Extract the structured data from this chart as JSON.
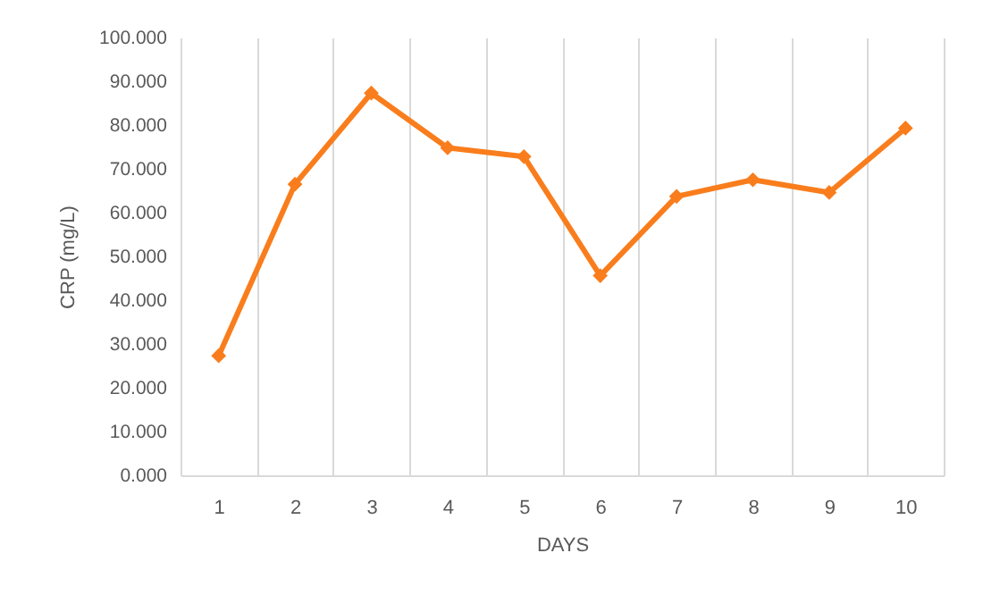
{
  "chart_data": {
    "type": "line",
    "xlabel": "DAYS",
    "ylabel": "CRP (mg/L)",
    "categories": [
      "1",
      "2",
      "3",
      "4",
      "5",
      "6",
      "7",
      "8",
      "9",
      "10"
    ],
    "series": [
      {
        "color": "#f97d1c",
        "values": [
          27.3,
          66.5,
          87.3,
          74.8,
          72.8,
          45.6,
          63.7,
          67.5,
          64.6,
          79.3
        ]
      }
    ],
    "ylim": [
      0,
      100
    ],
    "yticks": [
      {
        "value": 0,
        "label": "0.000"
      },
      {
        "value": 10,
        "label": "10.000"
      },
      {
        "value": 20,
        "label": "20.000"
      },
      {
        "value": 30,
        "label": "30.000"
      },
      {
        "value": 40,
        "label": "40.000"
      },
      {
        "value": 50,
        "label": "50.000"
      },
      {
        "value": 60,
        "label": "60.000"
      },
      {
        "value": 70,
        "label": "70.000"
      },
      {
        "value": 80,
        "label": "80.000"
      },
      {
        "value": 90,
        "label": "90.000"
      },
      {
        "value": 100,
        "label": "100.000"
      }
    ],
    "grid": "x",
    "marker": "diamond",
    "line_style": "solid"
  }
}
